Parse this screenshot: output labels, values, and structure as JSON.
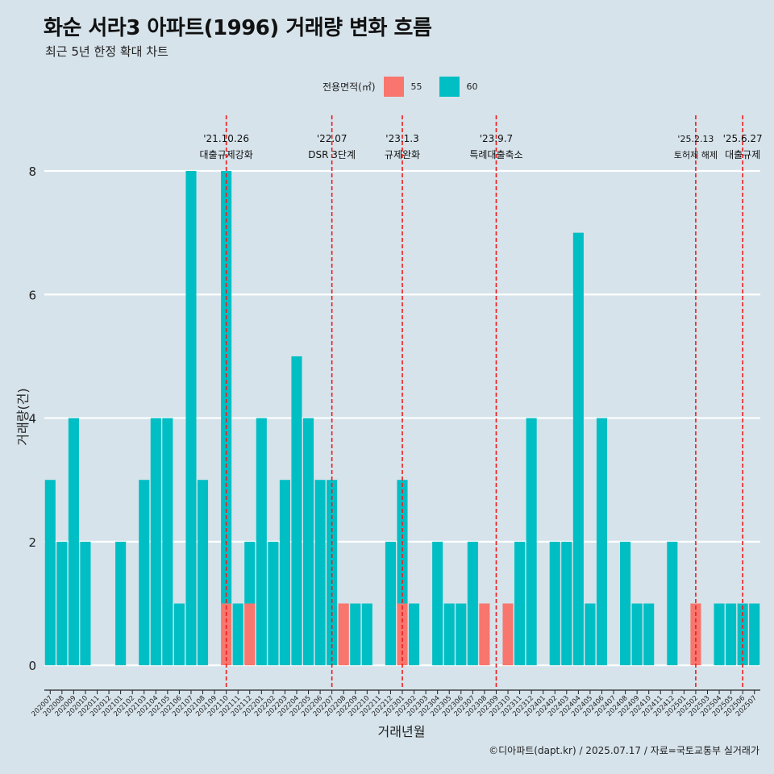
{
  "title": "화순 서라3 아파트(1996) 거래량 변화 흐름",
  "subtitle": "최근 5년 한정 확대 차트",
  "caption": "©디아파트(dapt.kr) / 2025.07.17 / 자료=국토교통부 실거래가",
  "legend": {
    "title": "전용면적(㎡)",
    "items": [
      {
        "label": "55",
        "color": "#f8766d"
      },
      {
        "label": "60",
        "color": "#00bfc4"
      }
    ]
  },
  "chart_data": {
    "type": "bar",
    "stacked": true,
    "xlabel": "거래년월",
    "ylabel": "거래량(건)",
    "ylim": [
      -0.35,
      8.9
    ],
    "yticks": [
      0,
      2,
      4,
      6,
      8
    ],
    "categories": [
      "202007",
      "202008",
      "202009",
      "202010",
      "202011",
      "202012",
      "202101",
      "202102",
      "202103",
      "202104",
      "202105",
      "202106",
      "202107",
      "202108",
      "202109",
      "202110",
      "202111",
      "202112",
      "202201",
      "202202",
      "202203",
      "202204",
      "202205",
      "202206",
      "202207",
      "202208",
      "202209",
      "202210",
      "202211",
      "202212",
      "202301",
      "202302",
      "202303",
      "202304",
      "202305",
      "202306",
      "202307",
      "202308",
      "202309",
      "202310",
      "202311",
      "202312",
      "202401",
      "202402",
      "202403",
      "202404",
      "202405",
      "202406",
      "202407",
      "202408",
      "202409",
      "202410",
      "202411",
      "202412",
      "202501",
      "202502",
      "202503",
      "202504",
      "202505",
      "202506",
      "202507"
    ],
    "series": [
      {
        "name": "55",
        "color": "#f8766d",
        "values": [
          0,
          0,
          0,
          0,
          0,
          0,
          0,
          0,
          0,
          0,
          0,
          0,
          0,
          0,
          0,
          1,
          0,
          1,
          0,
          0,
          0,
          0,
          0,
          0,
          0,
          1,
          0,
          0,
          0,
          0,
          1,
          0,
          0,
          0,
          0,
          0,
          0,
          1,
          0,
          1,
          0,
          0,
          0,
          0,
          0,
          0,
          0,
          0,
          0,
          0,
          0,
          0,
          0,
          0,
          0,
          1,
          0,
          0,
          0,
          0,
          0
        ]
      },
      {
        "name": "60",
        "color": "#00bfc4",
        "values": [
          3,
          2,
          4,
          2,
          0,
          0,
          2,
          0,
          3,
          4,
          4,
          1,
          8,
          3,
          0,
          7,
          1,
          1,
          4,
          2,
          3,
          5,
          4,
          3,
          3,
          0,
          1,
          1,
          0,
          2,
          2,
          1,
          0,
          2,
          1,
          1,
          2,
          0,
          0,
          0,
          2,
          4,
          0,
          2,
          2,
          7,
          1,
          4,
          0,
          2,
          1,
          1,
          0,
          2,
          0,
          0,
          0,
          1,
          1,
          1,
          1
        ]
      }
    ],
    "annotations": [
      {
        "position": 15.5,
        "date": "'21.10.26",
        "label": "대출규제강화"
      },
      {
        "position": 24.5,
        "date": "'22.07",
        "label": "DSR 3단계"
      },
      {
        "position": 30.5,
        "date": "'23.1.3",
        "label": "규제완화"
      },
      {
        "position": 38.5,
        "date": "'23.9.7",
        "label": "특례대출축소"
      },
      {
        "position": 55.5,
        "date": "'25.2.13",
        "label": "토허제 해제"
      },
      {
        "position": 59.5,
        "date": "'25.6.27",
        "label": "대출규제"
      }
    ]
  }
}
